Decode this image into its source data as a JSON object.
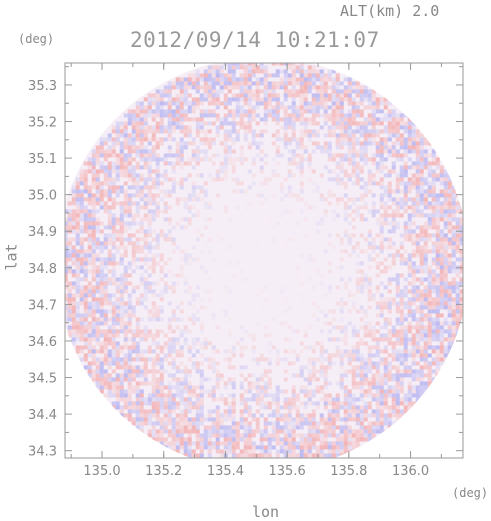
{
  "header": {
    "altitude": "ALT(km) 2.0",
    "datetime": "2012/09/14 10:21:07"
  },
  "chart_data": {
    "type": "heatmap",
    "title": "2012/09/14 10:21:07",
    "xlabel": "lon",
    "ylabel": "lat",
    "x_unit": "(deg)",
    "y_unit": "(deg)",
    "xlim": [
      134.88,
      136.17
    ],
    "ylim": [
      34.28,
      35.36
    ],
    "x_ticks": [
      135.0,
      135.2,
      135.4,
      135.6,
      135.8,
      136.0
    ],
    "x_tick_labels": [
      "135.0",
      "135.2",
      "135.4",
      "135.6",
      "135.8",
      "136.0"
    ],
    "y_ticks": [
      34.3,
      34.4,
      34.5,
      34.6,
      34.7,
      34.8,
      34.9,
      35.0,
      35.1,
      35.2,
      35.3
    ],
    "y_tick_labels": [
      "34.3",
      "34.4",
      "34.5",
      "34.6",
      "34.7",
      "34.8",
      "34.9",
      "35.0",
      "35.1",
      "35.2",
      "35.3"
    ],
    "domain": {
      "shape": "circle",
      "center": [
        135.52,
        34.81
      ],
      "radius_lon": 0.67
    },
    "colors": {
      "positive": "#f2a0a0",
      "negative": "#a6a6f0",
      "neutral": "#f6eef6"
    },
    "colorbar": "none"
  }
}
